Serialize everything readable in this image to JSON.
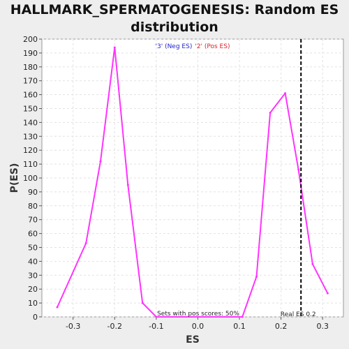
{
  "chart_data": {
    "type": "line",
    "title_line1": "HALLMARK_SPERMATOGENESIS: Random ES",
    "title_line2": "distribution",
    "xlabel": "ES",
    "ylabel": "P(ES)",
    "xlim": [
      -0.375,
      0.35
    ],
    "ylim": [
      0,
      200
    ],
    "xticks": [
      "-0.3",
      "-0.2",
      "-0.1",
      "0.0",
      "0.1",
      "0.2",
      "0.3"
    ],
    "xtick_values": [
      -0.3,
      -0.2,
      -0.1,
      0.0,
      0.1,
      0.2,
      0.3
    ],
    "yticks": [
      0,
      10,
      20,
      30,
      40,
      50,
      60,
      70,
      80,
      90,
      100,
      110,
      120,
      130,
      140,
      150,
      160,
      170,
      180,
      190,
      200
    ],
    "grid": true,
    "line_color": "#ff33ff",
    "series": [
      {
        "x": [
          -0.338,
          -0.269,
          -0.234,
          -0.2,
          -0.168,
          -0.133,
          -0.1,
          0.107,
          0.141,
          0.174,
          0.21,
          0.242,
          0.276,
          0.312
        ],
        "values": [
          7,
          53,
          112,
          194,
          95,
          10,
          0,
          0,
          29,
          147,
          161,
          106,
          38,
          17
        ]
      }
    ],
    "legend": {
      "neg": "'3' (Neg ES)",
      "pos": "'2' (Pos ES)",
      "neg_color": "#2222cc",
      "pos_color": "#dd2222"
    },
    "real_es": {
      "value": 0.248,
      "label": "Real ES 0.2"
    },
    "annotation": "Sets with pos scores: 50%"
  }
}
